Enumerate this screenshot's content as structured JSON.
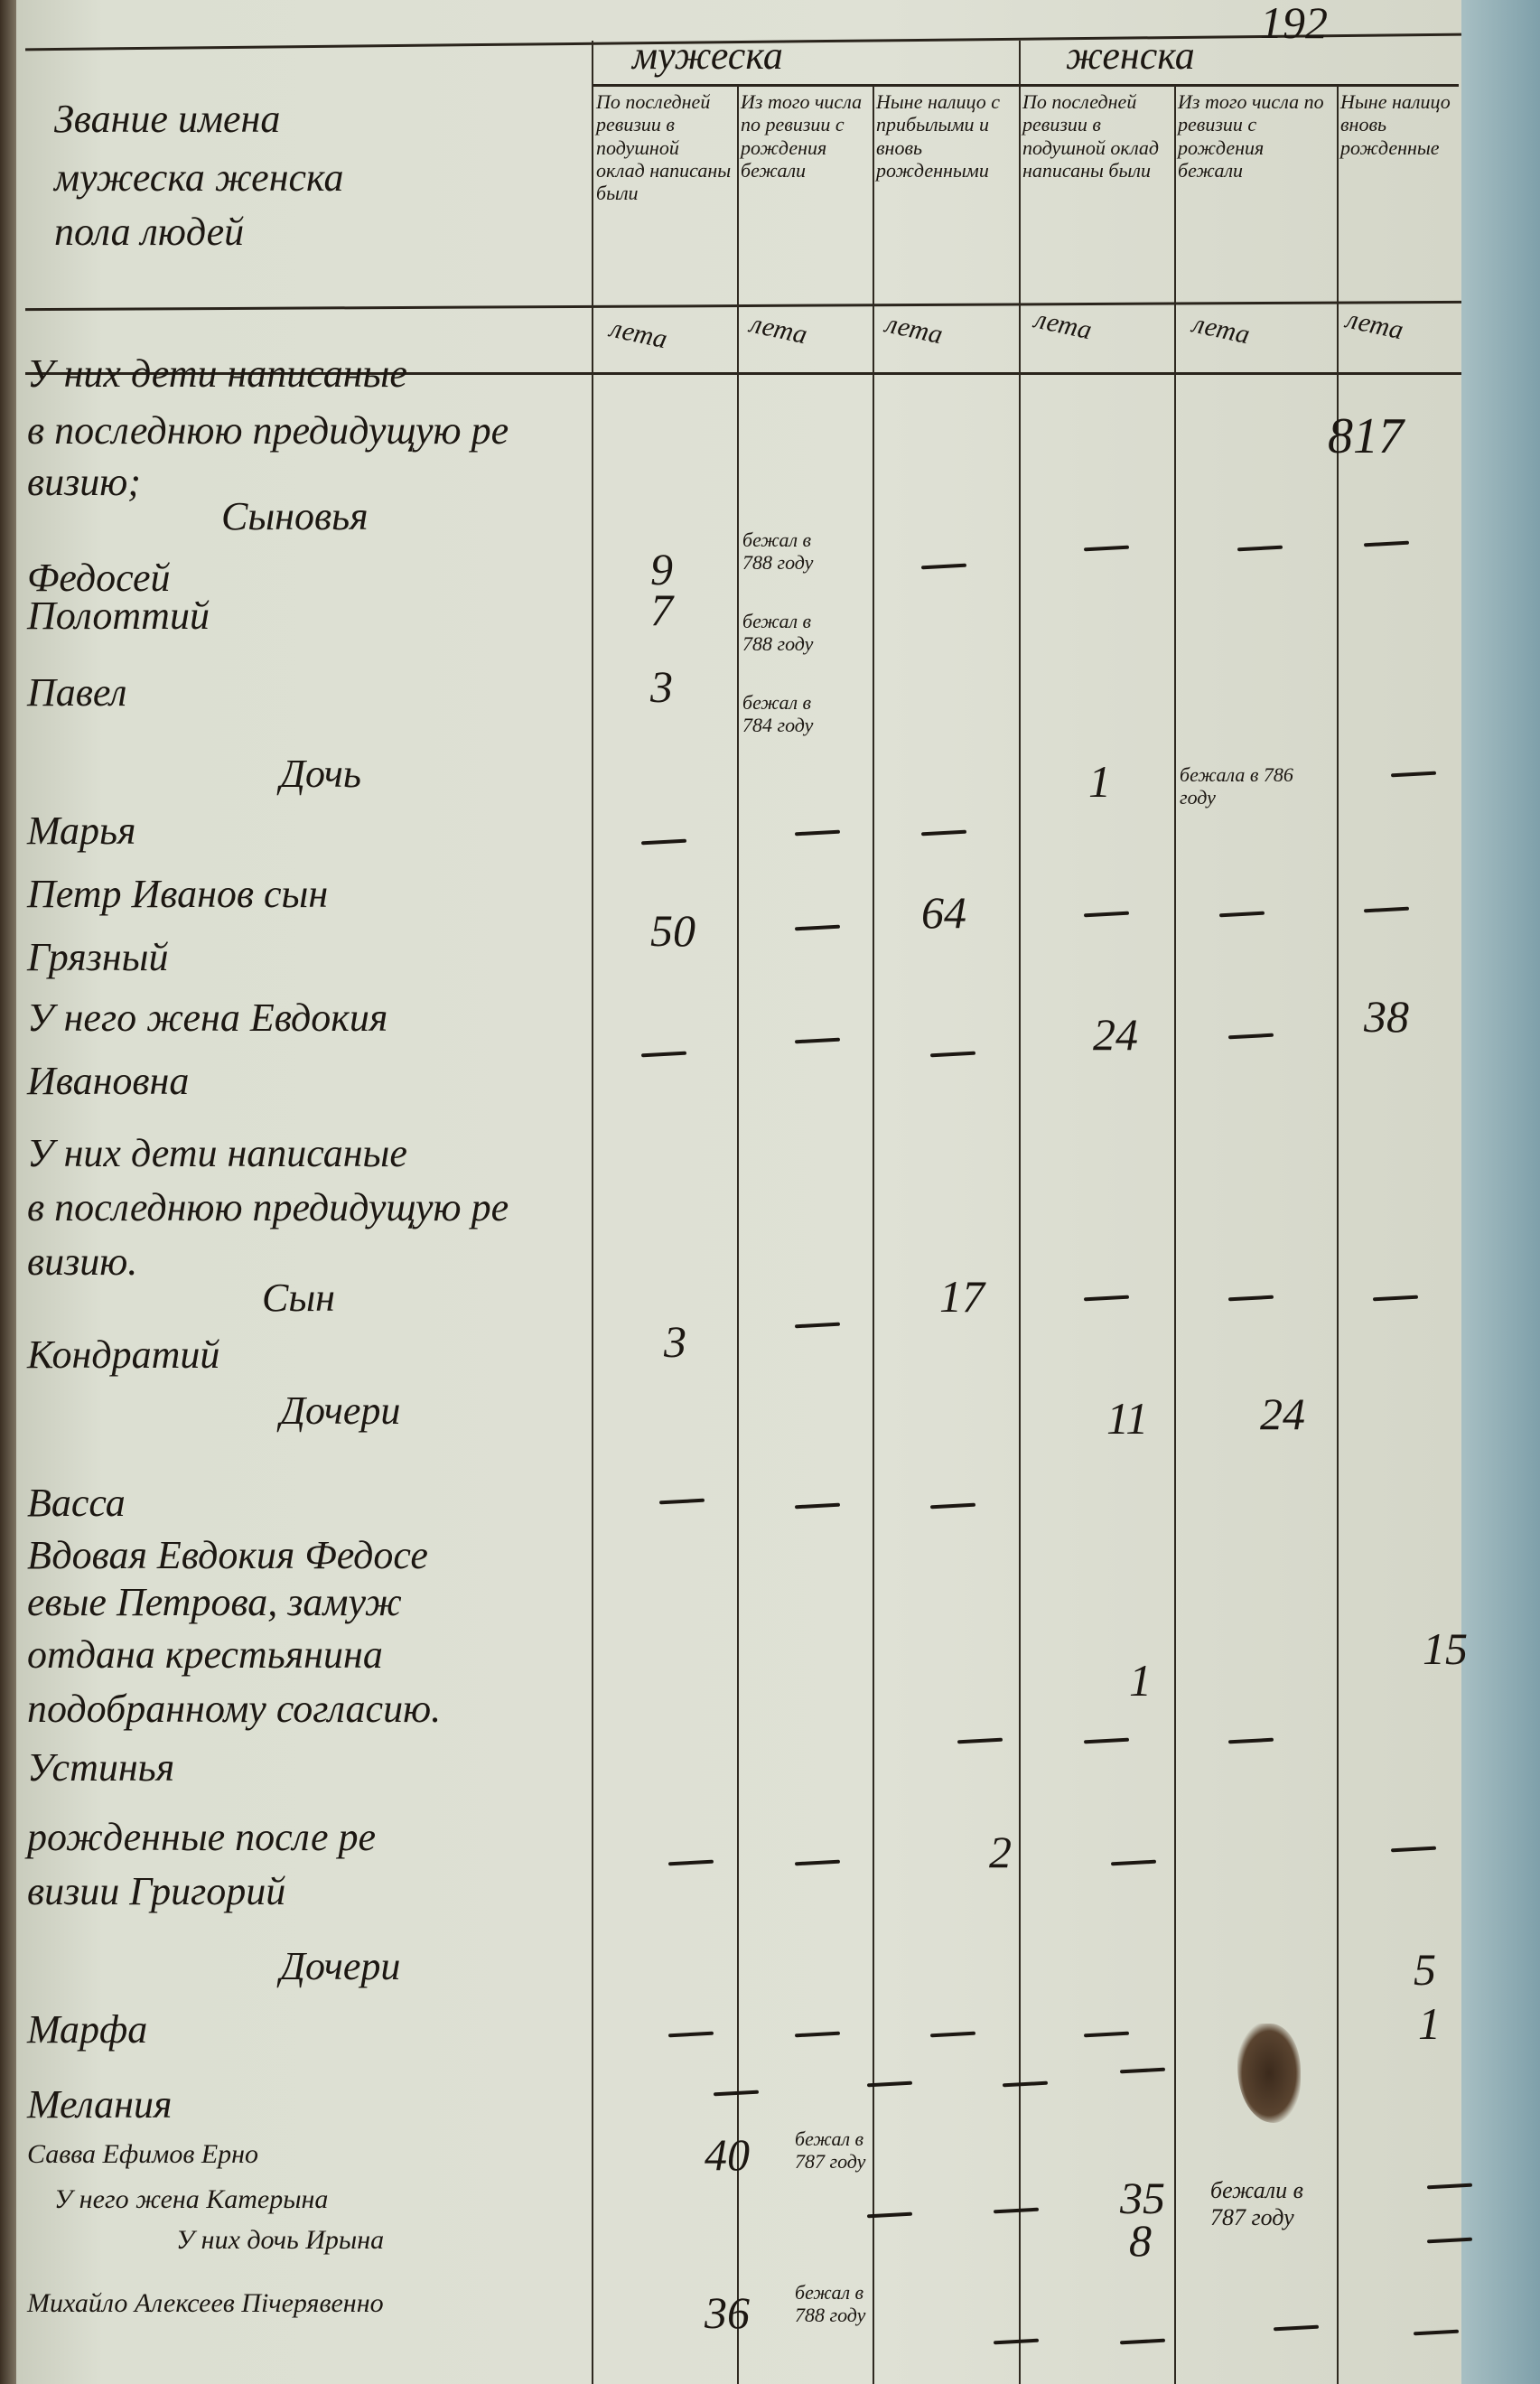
{
  "page_number": "192",
  "stamp_number": "817",
  "header": {
    "name_column": [
      "Звание имена",
      "мужеска женска",
      "пола людей"
    ],
    "male_group": "мужеска",
    "female_group": "женска",
    "sub_columns": [
      "По последней ревизии в подушной оклад написаны были",
      "Из того числа по ревизии с рождения бежали",
      "Ныне налицо с прибылыми и вновь рожденными",
      "По последней ревизии в подушной оклад написаны были",
      "Из того числа по ревизии с рождения бежали",
      "Ныне налицо вновь рожденные"
    ],
    "unit": "лета"
  },
  "rows": [
    {
      "name": "У них дети написаные"
    },
    {
      "name": "в последнюю предидущую ре"
    },
    {
      "name": "визию;"
    },
    {
      "name": "Сыновья"
    },
    {
      "name": "Федосей",
      "m_prev": "9",
      "m_fled": "бежал в 788 году"
    },
    {
      "name": "Полоттий",
      "m_prev": "7",
      "m_fled": "бежал в 788 году"
    },
    {
      "name": "Павел",
      "m_prev": "3",
      "m_fled": "бежал в 784 году"
    },
    {
      "name": "Дочь"
    },
    {
      "name": "Марья",
      "f_prev": "1",
      "f_fled": "бежала в 786 году"
    },
    {
      "name": "Петр Иванов сын",
      "m_prev": "50",
      "m_now": "64"
    },
    {
      "name": "Грязный"
    },
    {
      "name": "У него жена Евдокия",
      "f_prev": "24",
      "f_now": "38"
    },
    {
      "name": "Ивановна"
    },
    {
      "name": "У них дети написаные"
    },
    {
      "name": "в последнюю предидущую ре"
    },
    {
      "name": "визию."
    },
    {
      "name": "Сын",
      "m_now": "17"
    },
    {
      "name": "Кондратий",
      "m_prev": "3"
    },
    {
      "name": "Дочери",
      "f_prev": "11",
      "f_fled": "24"
    },
    {
      "name": "Васса"
    },
    {
      "name": "Вдовая Евдокия Федосе"
    },
    {
      "name": "евые Петрова, замуж"
    },
    {
      "name": "отдана крестьянина"
    },
    {
      "name": "подобранному согласию.",
      "f_prev": "1",
      "f_now": "15"
    },
    {
      "name": "Устинья"
    },
    {
      "name": "рожденные после ре",
      "m_now": "2"
    },
    {
      "name": "визии Григорий"
    },
    {
      "name": "Дочери",
      "f_now": "5"
    },
    {
      "name": "Марфа",
      "f_now": "1"
    },
    {
      "name": "Мелания"
    },
    {
      "name": "Савва Ефимов Ерно",
      "m_prev": "40",
      "m_fled": "бежал в 787 году"
    },
    {
      "name": "У него жена Катерына",
      "f_prev": "35",
      "f_fled": "бежали в 787 году"
    },
    {
      "name": "У них дочь Ирына",
      "f_prev": "8"
    },
    {
      "name": "Михайло Алексеев Пічерявенно",
      "m_prev": "36",
      "m_fled": "бежал в 788 году"
    }
  ],
  "colors": {
    "paper": "#dfe1d5",
    "ink": "#1c1712",
    "background": "#7fa3ad"
  }
}
